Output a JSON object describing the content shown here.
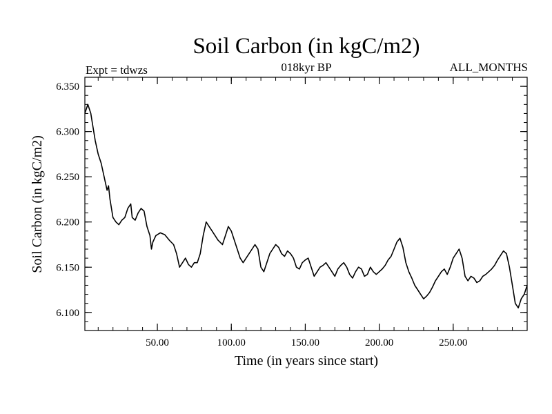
{
  "chart_data": {
    "type": "line",
    "title": "Soil Carbon (in kgC/m2)",
    "subtitle_left": "Expt = tdwzs",
    "subtitle_center": "018kyr BP",
    "subtitle_right": "ALL_MONTHS",
    "xlabel": "Time (in years since start)",
    "ylabel": "Soil Carbon (in kgC/m2)",
    "xlim": [
      1,
      300
    ],
    "ylim": [
      6.08,
      6.36
    ],
    "x_ticks": [
      50,
      100,
      150,
      200,
      250
    ],
    "x_tick_labels": [
      "50.00",
      "100.00",
      "150.00",
      "200.00",
      "250.00"
    ],
    "y_ticks": [
      6.1,
      6.15,
      6.2,
      6.25,
      6.3,
      6.35
    ],
    "y_tick_labels": [
      "6.100",
      "6.150",
      "6.200",
      "6.250",
      "6.300",
      "6.350"
    ],
    "grid": false,
    "line_color": "#000000",
    "series": [
      {
        "x": [
          1,
          3,
          5,
          6,
          8,
          10,
          12,
          14,
          16,
          17,
          18,
          20,
          22,
          24,
          26,
          28,
          30,
          32,
          33,
          35,
          37,
          39,
          41,
          43,
          45,
          46,
          47,
          49,
          52,
          55,
          58,
          61,
          63,
          65,
          67,
          69,
          71,
          73,
          75,
          77,
          79,
          81,
          83,
          85,
          87,
          89,
          91,
          94,
          96,
          98,
          100,
          102,
          104,
          106,
          108,
          110,
          112,
          114,
          116,
          118,
          120,
          122,
          124,
          126,
          128,
          130,
          132,
          134,
          136,
          138,
          140,
          142,
          144,
          146,
          148,
          150,
          152,
          154,
          156,
          158,
          160,
          162,
          164,
          166,
          168,
          170,
          172,
          174,
          176,
          178,
          180,
          182,
          184,
          186,
          188,
          190,
          192,
          194,
          196,
          198,
          200,
          202,
          204,
          206,
          208,
          210,
          212,
          214,
          216,
          218,
          220,
          222,
          224,
          226,
          228,
          230,
          232,
          234,
          236,
          238,
          240,
          242,
          244,
          246,
          248,
          250,
          252,
          254,
          256,
          258,
          260,
          262,
          264,
          266,
          268,
          270,
          272,
          274,
          276,
          278,
          280,
          282,
          284,
          286,
          288,
          290,
          292,
          294,
          296,
          298,
          300
        ],
        "y": [
          6.32,
          6.33,
          6.32,
          6.31,
          6.29,
          6.275,
          6.265,
          6.25,
          6.235,
          6.24,
          6.225,
          6.205,
          6.2,
          6.197,
          6.202,
          6.205,
          6.215,
          6.22,
          6.205,
          6.202,
          6.21,
          6.215,
          6.212,
          6.195,
          6.185,
          6.17,
          6.178,
          6.185,
          6.188,
          6.186,
          6.18,
          6.175,
          6.165,
          6.15,
          6.155,
          6.16,
          6.153,
          6.15,
          6.155,
          6.155,
          6.165,
          6.185,
          6.2,
          6.195,
          6.19,
          6.185,
          6.18,
          6.175,
          6.185,
          6.195,
          6.19,
          6.18,
          6.17,
          6.16,
          6.155,
          6.16,
          6.165,
          6.17,
          6.175,
          6.17,
          6.15,
          6.145,
          6.155,
          6.165,
          6.17,
          6.175,
          6.172,
          6.165,
          6.162,
          6.168,
          6.165,
          6.16,
          6.15,
          6.148,
          6.155,
          6.158,
          6.16,
          6.15,
          6.14,
          6.145,
          6.15,
          6.152,
          6.155,
          6.15,
          6.145,
          6.14,
          6.148,
          6.152,
          6.155,
          6.15,
          6.142,
          6.138,
          6.145,
          6.15,
          6.148,
          6.14,
          6.142,
          6.15,
          6.145,
          6.142,
          6.145,
          6.148,
          6.152,
          6.158,
          6.162,
          6.17,
          6.178,
          6.182,
          6.172,
          6.155,
          6.145,
          6.138,
          6.13,
          6.125,
          6.12,
          6.115,
          6.118,
          6.122,
          6.128,
          6.135,
          6.14,
          6.145,
          6.148,
          6.142,
          6.15,
          6.16,
          6.165,
          6.17,
          6.16,
          6.14,
          6.135,
          6.14,
          6.138,
          6.133,
          6.135,
          6.14,
          6.142,
          6.145,
          6.148,
          6.152,
          6.158,
          6.163,
          6.168,
          6.165,
          6.15,
          6.13,
          6.11,
          6.105,
          6.115,
          6.12,
          6.13
        ]
      }
    ]
  }
}
